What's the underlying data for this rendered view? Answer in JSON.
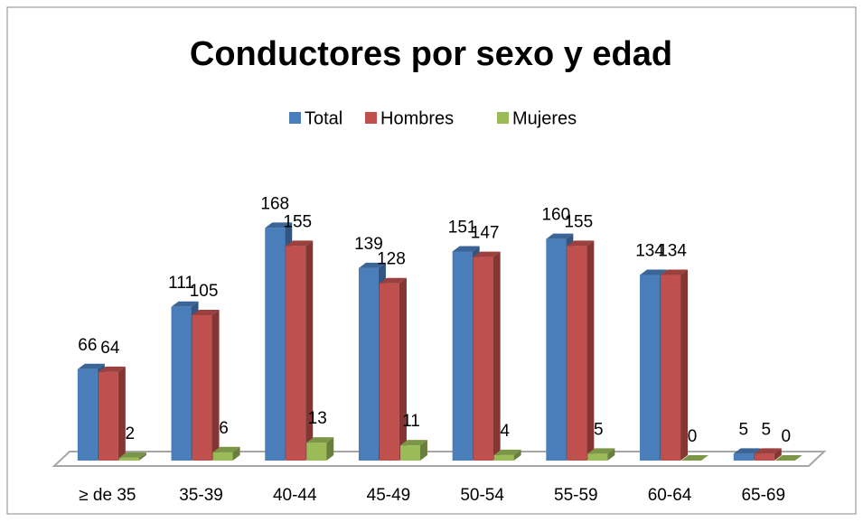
{
  "chart_data": {
    "type": "bar3d",
    "title": "Conductores por sexo y edad",
    "categories": [
      "≥ de 35",
      "35-39",
      "40-44",
      "45-49",
      "50-54",
      "55-59",
      "60-64",
      "65-69"
    ],
    "series": [
      {
        "name": "Total",
        "color": "#4a7ebb",
        "values": [
          66,
          111,
          168,
          139,
          151,
          160,
          134,
          5
        ]
      },
      {
        "name": "Hombres",
        "color": "#c0504d",
        "values": [
          64,
          105,
          155,
          128,
          147,
          155,
          134,
          5
        ]
      },
      {
        "name": "Mujeres",
        "color": "#9bbb59",
        "values": [
          2,
          6,
          13,
          11,
          4,
          5,
          0,
          0
        ]
      }
    ],
    "ylim": [
      0,
      180
    ],
    "legend": "top"
  }
}
